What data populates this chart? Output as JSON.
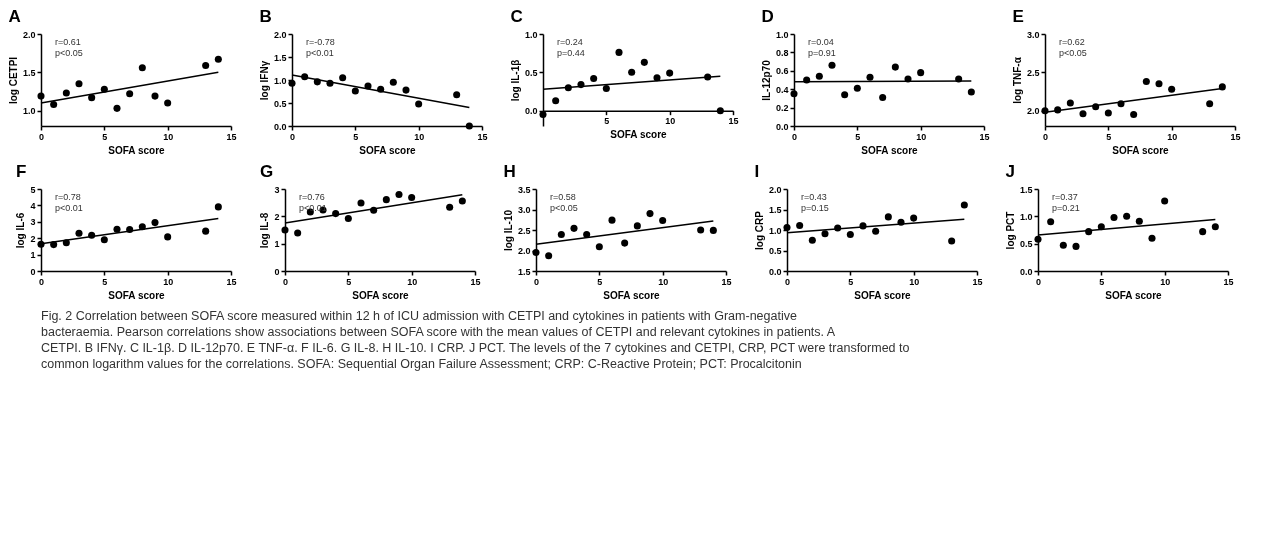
{
  "chart_data": [
    {
      "type": "scatter",
      "title": "A",
      "xlabel": "SOFA score",
      "ylabel": "log CETPI",
      "annotations": [
        "r=0.61",
        "p<0.05"
      ],
      "xlim": [
        0,
        15
      ],
      "xticks": [
        0,
        5,
        10,
        15
      ],
      "ylim": [
        0.8,
        2.0
      ],
      "yticks": [
        {
          "value": 1,
          "label": "1.0"
        },
        {
          "value": 1.5,
          "label": "1.5"
        },
        {
          "value": 2,
          "label": "2.0"
        }
      ],
      "series": [
        {
          "type": "scatter",
          "marker": "circle",
          "color": "#000000",
          "x": [
            0,
            1,
            2,
            3,
            4,
            5,
            6,
            7,
            8,
            9,
            10,
            13,
            14
          ],
          "values": [
            1.19,
            1.08,
            1.23,
            1.35,
            1.17,
            1.28,
            1.03,
            1.22,
            1.56,
            1.19,
            1.1,
            1.59,
            1.67
          ]
        },
        {
          "type": "line",
          "marker": "none",
          "color": "#000000",
          "x": [
            0,
            14
          ],
          "values": [
            1.1,
            1.5
          ]
        }
      ]
    },
    {
      "type": "scatter",
      "title": "B",
      "xlabel": "SOFA score",
      "ylabel": "log IFNγ",
      "annotations": [
        "r=-0.78",
        "p<0.01"
      ],
      "xlim": [
        0,
        15
      ],
      "xticks": [
        0,
        5,
        10,
        15
      ],
      "ylim": [
        0,
        2.0
      ],
      "yticks": [
        {
          "value": 0,
          "label": "0.0"
        },
        {
          "value": 0.5,
          "label": "0.5"
        },
        {
          "value": 1,
          "label": "1.0"
        },
        {
          "value": 1.5,
          "label": "1.5"
        },
        {
          "value": 2,
          "label": "2.0"
        }
      ],
      "series": [
        {
          "type": "scatter",
          "marker": "circle",
          "color": "#000000",
          "x": [
            0,
            1,
            2,
            3,
            4,
            5,
            6,
            7,
            8,
            9,
            10,
            13,
            14
          ],
          "values": [
            0.93,
            1.07,
            0.96,
            0.93,
            1.05,
            0.76,
            0.87,
            0.8,
            0.95,
            0.78,
            0.48,
            0.68,
            0.0
          ]
        },
        {
          "type": "line",
          "marker": "none",
          "color": "#000000",
          "x": [
            0,
            14
          ],
          "values": [
            1.11,
            0.4
          ]
        }
      ]
    },
    {
      "type": "scatter",
      "title": "C",
      "xlabel": "SOFA score",
      "ylabel": "log IL-1β",
      "annotations": [
        "r=0.24",
        "p=0.44"
      ],
      "xlim": [
        0,
        15
      ],
      "xticks": [
        {
          "value": 0,
          "label": null
        },
        5,
        10,
        15
      ],
      "ylim": [
        -0.2,
        1.0
      ],
      "yticks": [
        {
          "value": 0,
          "label": "0.0"
        },
        {
          "value": 0.5,
          "label": "0.5"
        },
        {
          "value": 1,
          "label": "1.0"
        }
      ],
      "series": [
        {
          "type": "scatter",
          "marker": "circle",
          "color": "#000000",
          "x": [
            0,
            1,
            2,
            3,
            4,
            5,
            6,
            7,
            8,
            9,
            10,
            13,
            14
          ],
          "values": [
            -0.05,
            0.13,
            0.3,
            0.34,
            0.42,
            0.29,
            0.76,
            0.5,
            0.63,
            0.43,
            0.49,
            0.44,
            0.0
          ]
        },
        {
          "type": "line",
          "marker": "none",
          "color": "#000000",
          "x": [
            0,
            14
          ],
          "values": [
            0.28,
            0.45
          ]
        }
      ]
    },
    {
      "type": "scatter",
      "title": "D",
      "xlabel": "SOFA score",
      "ylabel": "IL-12p70",
      "annotations": [
        "r=0.04",
        "p=0.91"
      ],
      "xlim": [
        0,
        15
      ],
      "xticks": [
        0,
        5,
        10,
        15
      ],
      "ylim": [
        0,
        1.0
      ],
      "yticks": [
        {
          "value": 0,
          "label": "0.0"
        },
        0.2,
        0.4,
        0.6,
        0.8,
        {
          "value": 1,
          "label": "1.0"
        }
      ],
      "series": [
        {
          "type": "scatter",
          "marker": "circle",
          "color": "#000000",
          "x": [
            0,
            1,
            2,
            3,
            4,
            5,
            6,
            7,
            8,
            9,
            10,
            13,
            14
          ],
          "values": [
            0.35,
            0.5,
            0.54,
            0.66,
            0.34,
            0.41,
            0.53,
            0.31,
            0.64,
            0.51,
            0.58,
            0.51,
            0.37
          ]
        },
        {
          "type": "line",
          "marker": "none",
          "color": "#000000",
          "x": [
            0,
            14
          ],
          "values": [
            0.48,
            0.49
          ]
        }
      ]
    },
    {
      "type": "scatter",
      "title": "E",
      "xlabel": "SOFA score",
      "ylabel": "log TNF-α",
      "annotations": [
        "r=0.62",
        "p<0.05"
      ],
      "xlim": [
        0,
        15
      ],
      "xticks": [
        0,
        5,
        10,
        15
      ],
      "ylim": [
        1.8,
        3.0
      ],
      "yticks": [
        {
          "value": 2,
          "label": "2.0"
        },
        {
          "value": 2.5,
          "label": "2.5"
        },
        {
          "value": 3,
          "label": "3.0"
        }
      ],
      "series": [
        {
          "type": "scatter",
          "marker": "circle",
          "color": "#000000",
          "x": [
            0,
            1,
            2,
            3,
            4,
            5,
            6,
            7,
            8,
            9,
            10,
            13,
            14
          ],
          "values": [
            2.0,
            2.01,
            2.1,
            1.96,
            2.05,
            1.97,
            2.09,
            1.95,
            2.38,
            2.35,
            2.28,
            2.09,
            2.31
          ]
        },
        {
          "type": "line",
          "marker": "none",
          "color": "#000000",
          "x": [
            0,
            14
          ],
          "values": [
            1.98,
            2.29
          ]
        }
      ]
    },
    {
      "type": "scatter",
      "title": "F",
      "xlabel": "SOFA score",
      "ylabel": "log IL-6",
      "annotations": [
        "r=0.78",
        "p<0.01"
      ],
      "xlim": [
        0,
        15
      ],
      "xticks": [
        0,
        5,
        10,
        15
      ],
      "ylim": [
        0,
        5
      ],
      "yticks": [
        0,
        1,
        2,
        3,
        4,
        5
      ],
      "series": [
        {
          "type": "scatter",
          "marker": "circle",
          "color": "#000000",
          "x": [
            0,
            1,
            2,
            3,
            4,
            5,
            6,
            7,
            8,
            9,
            10,
            13,
            14
          ],
          "values": [
            1.63,
            1.61,
            1.72,
            2.3,
            2.18,
            1.91,
            2.55,
            2.53,
            2.7,
            2.95,
            2.08,
            2.43,
            3.91
          ]
        },
        {
          "type": "line",
          "marker": "none",
          "color": "#000000",
          "x": [
            0,
            14
          ],
          "values": [
            1.66,
            3.2
          ]
        }
      ]
    },
    {
      "type": "scatter",
      "title": "G",
      "xlabel": "SOFA score",
      "ylabel": "log IL-8",
      "annotations": [
        "r=0.76",
        "p<0.01"
      ],
      "xlim": [
        0,
        15
      ],
      "xticks": [
        0,
        5,
        10,
        15
      ],
      "ylim": [
        0,
        3
      ],
      "yticks": [
        0,
        1,
        2,
        3
      ],
      "series": [
        {
          "type": "scatter",
          "marker": "circle",
          "color": "#000000",
          "x": [
            0,
            1,
            2,
            3,
            4,
            5,
            6,
            7,
            8,
            9,
            10,
            13,
            14
          ],
          "values": [
            1.5,
            1.39,
            2.16,
            2.23,
            2.1,
            1.92,
            2.49,
            2.22,
            2.61,
            2.8,
            2.69,
            2.33,
            2.56
          ]
        },
        {
          "type": "line",
          "marker": "none",
          "color": "#000000",
          "x": [
            0,
            14
          ],
          "values": [
            1.76,
            2.79
          ]
        }
      ]
    },
    {
      "type": "scatter",
      "title": "H",
      "xlabel": "SOFA score",
      "ylabel": "log IL-10",
      "annotations": [
        "r=0.58",
        "p<0.05"
      ],
      "xlim": [
        0,
        15
      ],
      "xticks": [
        0,
        5,
        10,
        15
      ],
      "ylim": [
        1.5,
        3.5
      ],
      "yticks": [
        1.5,
        {
          "value": 2,
          "label": "2.0"
        },
        2.5,
        {
          "value": 3,
          "label": "3.0"
        },
        3.5
      ],
      "series": [
        {
          "type": "scatter",
          "marker": "circle",
          "color": "#000000",
          "x": [
            0,
            1,
            2,
            3,
            4,
            5,
            6,
            7,
            8,
            9,
            10,
            13,
            14
          ],
          "values": [
            1.95,
            1.87,
            2.39,
            2.54,
            2.39,
            2.09,
            2.74,
            2.18,
            2.6,
            2.9,
            2.73,
            2.5,
            2.49
          ]
        },
        {
          "type": "line",
          "marker": "none",
          "color": "#000000",
          "x": [
            0,
            14
          ],
          "values": [
            2.15,
            2.72
          ]
        }
      ]
    },
    {
      "type": "scatter",
      "title": "I",
      "xlabel": "SOFA score",
      "ylabel": "log CRP",
      "annotations": [
        "r=0.43",
        "p=0.15"
      ],
      "xlim": [
        0,
        15
      ],
      "xticks": [
        0,
        5,
        10,
        15
      ],
      "ylim": [
        0,
        2.0
      ],
      "yticks": [
        {
          "value": 0,
          "label": "0.0"
        },
        {
          "value": 0.5,
          "label": "0.5"
        },
        {
          "value": 1,
          "label": "1.0"
        },
        {
          "value": 1.5,
          "label": "1.5"
        },
        {
          "value": 2,
          "label": "2.0"
        }
      ],
      "series": [
        {
          "type": "scatter",
          "marker": "circle",
          "color": "#000000",
          "x": [
            0,
            1,
            2,
            3,
            4,
            5,
            6,
            7,
            8,
            9,
            10,
            13,
            14
          ],
          "values": [
            1.06,
            1.11,
            0.75,
            0.91,
            1.05,
            0.89,
            1.1,
            0.97,
            1.32,
            1.19,
            1.29,
            0.73,
            1.61
          ]
        },
        {
          "type": "line",
          "marker": "none",
          "color": "#000000",
          "x": [
            0,
            14
          ],
          "values": [
            0.93,
            1.26
          ]
        }
      ]
    },
    {
      "type": "scatter",
      "title": "J",
      "xlabel": "SOFA score",
      "ylabel": "log PCT",
      "annotations": [
        "r=0.37",
        "p=0.21"
      ],
      "xlim": [
        0,
        15
      ],
      "xticks": [
        0,
        5,
        10,
        15
      ],
      "ylim": [
        0,
        1.5
      ],
      "yticks": [
        {
          "value": 0,
          "label": "0.0"
        },
        {
          "value": 0.5,
          "label": "0.5"
        },
        {
          "value": 1,
          "label": "1.0"
        },
        {
          "value": 1.5,
          "label": "1.5"
        }
      ],
      "series": [
        {
          "type": "scatter",
          "marker": "circle",
          "color": "#000000",
          "x": [
            0,
            1,
            2,
            3,
            4,
            5,
            6,
            7,
            8,
            9,
            10,
            13,
            14
          ],
          "values": [
            0.58,
            0.9,
            0.47,
            0.45,
            0.72,
            0.81,
            0.98,
            1.0,
            0.91,
            0.6,
            1.28,
            0.72,
            0.81
          ]
        },
        {
          "type": "line",
          "marker": "none",
          "color": "#000000",
          "x": [
            0,
            14
          ],
          "values": [
            0.66,
            0.94
          ]
        }
      ]
    },
    {
      "type": "other",
      "annotations": [
        "Fig. 2  Correlation between SOFA score measured within 12 h of ICU admission  with CETPI and cytokines in patients with Gram-negative",
        "bacteraemia. Pearson correlations show associations between SOFA score with the mean values of CETPI and relevant cytokines in patients. A",
        "CETPI. B IFNγ. C IL-1β. D IL-12p70. E TNF-α. F IL-6. G IL-8. H IL-10. I CRP. J PCT. The levels of the 7 cytokines and CETPI, CRP, PCT were transformed to",
        "common logarithm values for the correlations. SOFA: Sequential Organ Failure Assessment; CRP: C-Reactive Protein; PCT: Procalcitonin"
      ]
    }
  ]
}
